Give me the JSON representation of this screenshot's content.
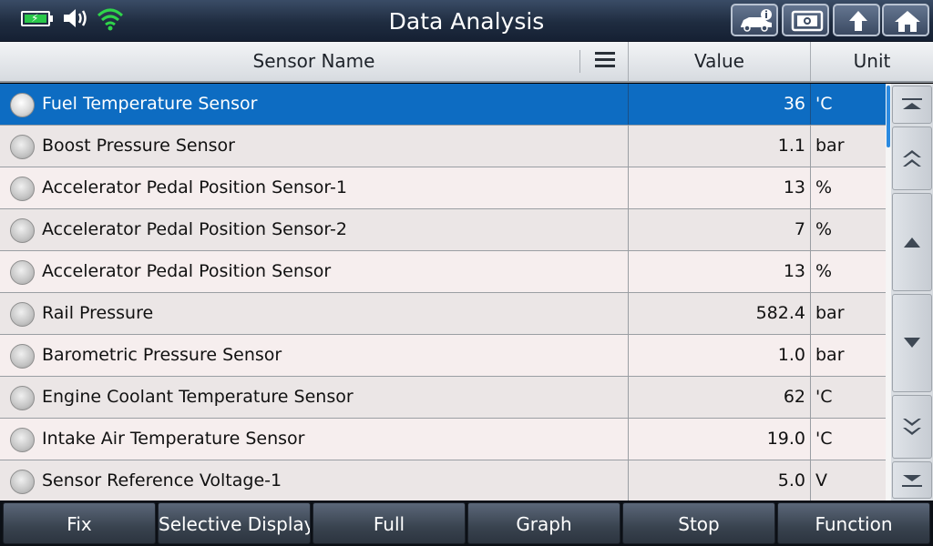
{
  "title": "Data Analysis",
  "status": {
    "battery": "battery-charging-icon",
    "speaker": "speaker-icon",
    "wifi": "wifi-icon"
  },
  "header": {
    "sensor_name": "Sensor Name",
    "value": "Value",
    "unit": "Unit"
  },
  "rows": [
    {
      "name": "Fuel Temperature Sensor",
      "value": "36",
      "unit": "'C"
    },
    {
      "name": "Boost Pressure Sensor",
      "value": "1.1",
      "unit": "bar"
    },
    {
      "name": "Accelerator Pedal Position Sensor-1",
      "value": "13",
      "unit": "%"
    },
    {
      "name": "Accelerator Pedal Position Sensor-2",
      "value": "7",
      "unit": "%"
    },
    {
      "name": "Accelerator Pedal Position Sensor",
      "value": "13",
      "unit": "%"
    },
    {
      "name": "Rail Pressure",
      "value": "582.4",
      "unit": "bar"
    },
    {
      "name": "Barometric Pressure Sensor",
      "value": "1.0",
      "unit": "bar"
    },
    {
      "name": "Engine Coolant Temperature Sensor",
      "value": "62",
      "unit": "'C"
    },
    {
      "name": "Intake Air Temperature Sensor",
      "value": "19.0",
      "unit": "'C"
    },
    {
      "name": "Sensor Reference Voltage-1",
      "value": "5.0",
      "unit": "V"
    }
  ],
  "bottom": {
    "fix": "Fix",
    "selective_display": "Selective Display",
    "full": "Full",
    "graph": "Graph",
    "stop": "Stop",
    "function": "Function"
  },
  "colors": {
    "accent": "#0d6cc2",
    "battery": "#29c84a",
    "wifi": "#2fd44a"
  }
}
